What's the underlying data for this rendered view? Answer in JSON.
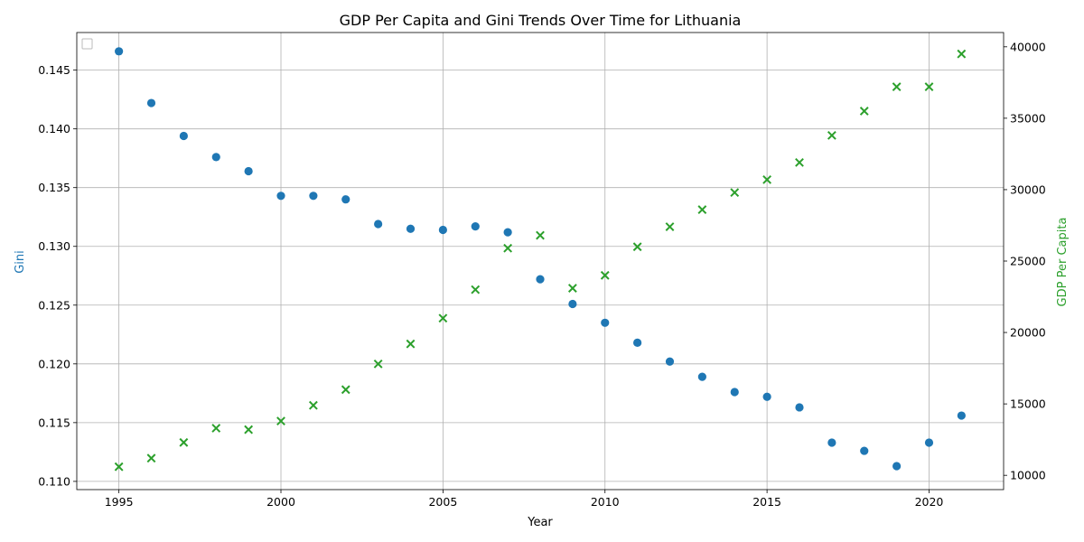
{
  "chart_data": {
    "type": "scatter",
    "title": "GDP Per Capita and Gini Trends Over Time for Lithuania",
    "xlabel": "Year",
    "ylabel_left": "Gini",
    "ylabel_right": "GDP Per Capita",
    "grid": true,
    "legend": "top-left",
    "xlim": [
      1993.7,
      2022.3
    ],
    "x_ticks": [
      1995,
      2000,
      2005,
      2010,
      2015,
      2020
    ],
    "ylim_left": [
      0.1093,
      0.1482
    ],
    "y_ticks_left": [
      0.11,
      0.115,
      0.12,
      0.125,
      0.13,
      0.135,
      0.14,
      0.145
    ],
    "ylim_right": [
      9000,
      41000
    ],
    "y_ticks_right": [
      10000,
      15000,
      20000,
      25000,
      30000,
      35000,
      40000
    ],
    "colors": {
      "gini": "#1f77b4",
      "gdp": "#2ca02c"
    },
    "x": [
      1995,
      1996,
      1997,
      1998,
      1999,
      2000,
      2001,
      2002,
      2003,
      2004,
      2005,
      2006,
      2007,
      2008,
      2009,
      2010,
      2011,
      2012,
      2013,
      2014,
      2015,
      2016,
      2017,
      2018,
      2019,
      2020,
      2021
    ],
    "series": [
      {
        "axis": "left",
        "marker": "circle",
        "values": [
          0.1466,
          0.1422,
          0.1394,
          0.1376,
          0.1364,
          0.1343,
          0.1343,
          0.134,
          0.1319,
          0.1315,
          0.1314,
          0.1317,
          0.1312,
          0.1272,
          0.1251,
          0.1235,
          0.1218,
          0.1202,
          0.1189,
          0.1176,
          0.1172,
          0.1163,
          0.1133,
          0.1126,
          0.1113,
          0.1133,
          0.1156
        ]
      },
      {
        "axis": "right",
        "marker": "x",
        "values": [
          10600,
          11200,
          12300,
          13300,
          13200,
          13800,
          14900,
          16000,
          17800,
          19200,
          21000,
          23000,
          25900,
          26800,
          23100,
          24000,
          26000,
          27400,
          28600,
          29800,
          30700,
          31900,
          33800,
          35500,
          37200,
          37200,
          39500
        ]
      }
    ]
  }
}
